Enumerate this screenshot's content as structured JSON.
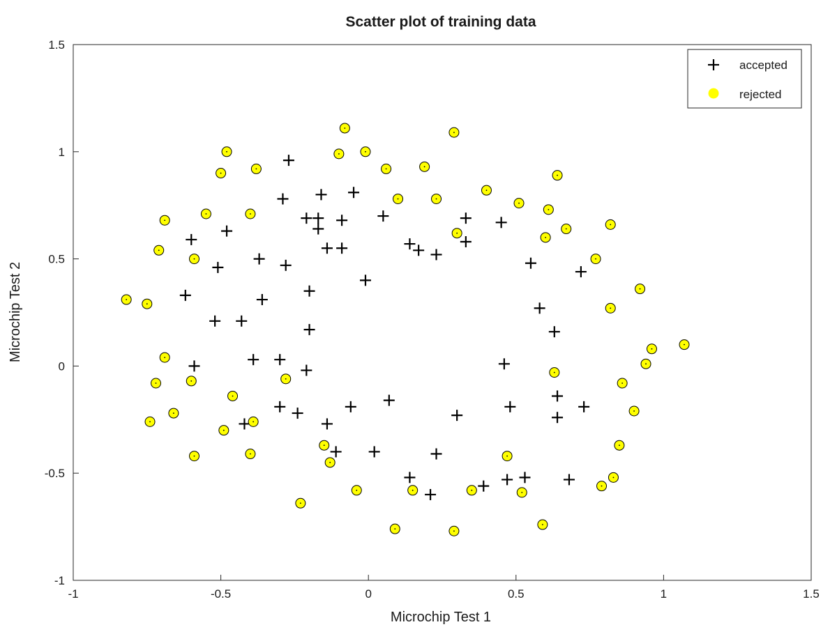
{
  "chart_data": {
    "type": "scatter",
    "title": "Scatter plot of training data",
    "xlabel": "Microchip Test 1",
    "ylabel": "Microchip Test 2",
    "xlim": [
      -1,
      1.5
    ],
    "ylim": [
      -1,
      1.5
    ],
    "xticks": [
      "-1",
      "-0.5",
      "0",
      "0.5",
      "1",
      "1.5"
    ],
    "yticks": [
      "-1",
      "-0.5",
      "0",
      "0.5",
      "1",
      "1.5"
    ],
    "grid": false,
    "legend_position": "top-right",
    "series": [
      {
        "name": "accepted",
        "marker": "plus",
        "color": "#000000",
        "points": [
          [
            -0.27,
            0.96
          ],
          [
            -0.05,
            0.81
          ],
          [
            -0.16,
            0.8
          ],
          [
            -0.29,
            0.78
          ],
          [
            -0.21,
            0.69
          ],
          [
            -0.17,
            0.69
          ],
          [
            -0.09,
            0.68
          ],
          [
            0.05,
            0.7
          ],
          [
            0.33,
            0.69
          ],
          [
            0.45,
            0.67
          ],
          [
            -0.48,
            0.63
          ],
          [
            -0.17,
            0.64
          ],
          [
            -0.6,
            0.59
          ],
          [
            -0.14,
            0.55
          ],
          [
            -0.09,
            0.55
          ],
          [
            0.14,
            0.57
          ],
          [
            0.17,
            0.54
          ],
          [
            0.23,
            0.52
          ],
          [
            0.33,
            0.58
          ],
          [
            -0.51,
            0.46
          ],
          [
            -0.37,
            0.5
          ],
          [
            -0.28,
            0.47
          ],
          [
            0.55,
            0.48
          ],
          [
            0.72,
            0.44
          ],
          [
            -0.01,
            0.4
          ],
          [
            -0.2,
            0.35
          ],
          [
            -0.62,
            0.33
          ],
          [
            -0.36,
            0.31
          ],
          [
            -0.52,
            0.21
          ],
          [
            -0.43,
            0.21
          ],
          [
            0.58,
            0.27
          ],
          [
            -0.2,
            0.17
          ],
          [
            0.63,
            0.16
          ],
          [
            -0.39,
            0.03
          ],
          [
            -0.3,
            0.03
          ],
          [
            -0.59,
            0.0
          ],
          [
            0.46,
            0.01
          ],
          [
            -0.21,
            -0.02
          ],
          [
            -0.3,
            -0.19
          ],
          [
            -0.24,
            -0.22
          ],
          [
            -0.06,
            -0.19
          ],
          [
            0.07,
            -0.16
          ],
          [
            0.48,
            -0.19
          ],
          [
            0.64,
            -0.14
          ],
          [
            0.73,
            -0.19
          ],
          [
            -0.42,
            -0.27
          ],
          [
            -0.14,
            -0.27
          ],
          [
            0.3,
            -0.23
          ],
          [
            0.64,
            -0.24
          ],
          [
            -0.11,
            -0.4
          ],
          [
            0.02,
            -0.4
          ],
          [
            0.23,
            -0.41
          ],
          [
            0.14,
            -0.52
          ],
          [
            0.47,
            -0.53
          ],
          [
            0.53,
            -0.52
          ],
          [
            0.68,
            -0.53
          ],
          [
            0.39,
            -0.56
          ],
          [
            0.21,
            -0.6
          ]
        ]
      },
      {
        "name": "rejected",
        "marker": "circle",
        "color": "#ffff00",
        "points": [
          [
            -0.08,
            1.11
          ],
          [
            0.29,
            1.09
          ],
          [
            -0.48,
            1.0
          ],
          [
            -0.1,
            0.99
          ],
          [
            -0.01,
            1.0
          ],
          [
            -0.5,
            0.9
          ],
          [
            -0.38,
            0.92
          ],
          [
            0.06,
            0.92
          ],
          [
            0.19,
            0.93
          ],
          [
            0.64,
            0.89
          ],
          [
            0.4,
            0.82
          ],
          [
            0.1,
            0.78
          ],
          [
            0.23,
            0.78
          ],
          [
            0.51,
            0.76
          ],
          [
            -0.55,
            0.71
          ],
          [
            -0.4,
            0.71
          ],
          [
            -0.69,
            0.68
          ],
          [
            0.61,
            0.73
          ],
          [
            0.82,
            0.66
          ],
          [
            0.67,
            0.64
          ],
          [
            0.3,
            0.62
          ],
          [
            0.6,
            0.6
          ],
          [
            -0.71,
            0.54
          ],
          [
            -0.59,
            0.5
          ],
          [
            0.77,
            0.5
          ],
          [
            0.92,
            0.36
          ],
          [
            -0.82,
            0.31
          ],
          [
            -0.75,
            0.29
          ],
          [
            0.82,
            0.27
          ],
          [
            1.07,
            0.1
          ],
          [
            0.96,
            0.08
          ],
          [
            0.94,
            0.01
          ],
          [
            -0.69,
            0.04
          ],
          [
            -0.72,
            -0.08
          ],
          [
            -0.6,
            -0.07
          ],
          [
            -0.28,
            -0.06
          ],
          [
            0.63,
            -0.03
          ],
          [
            0.86,
            -0.08
          ],
          [
            -0.46,
            -0.14
          ],
          [
            0.9,
            -0.21
          ],
          [
            -0.74,
            -0.26
          ],
          [
            -0.66,
            -0.22
          ],
          [
            -0.49,
            -0.3
          ],
          [
            -0.39,
            -0.26
          ],
          [
            -0.15,
            -0.37
          ],
          [
            0.85,
            -0.37
          ],
          [
            -0.59,
            -0.42
          ],
          [
            -0.4,
            -0.41
          ],
          [
            -0.13,
            -0.45
          ],
          [
            0.47,
            -0.42
          ],
          [
            0.83,
            -0.52
          ],
          [
            0.79,
            -0.56
          ],
          [
            -0.04,
            -0.58
          ],
          [
            0.15,
            -0.58
          ],
          [
            0.35,
            -0.58
          ],
          [
            0.52,
            -0.59
          ],
          [
            -0.23,
            -0.64
          ],
          [
            0.09,
            -0.76
          ],
          [
            0.29,
            -0.77
          ],
          [
            0.59,
            -0.74
          ]
        ]
      }
    ]
  }
}
